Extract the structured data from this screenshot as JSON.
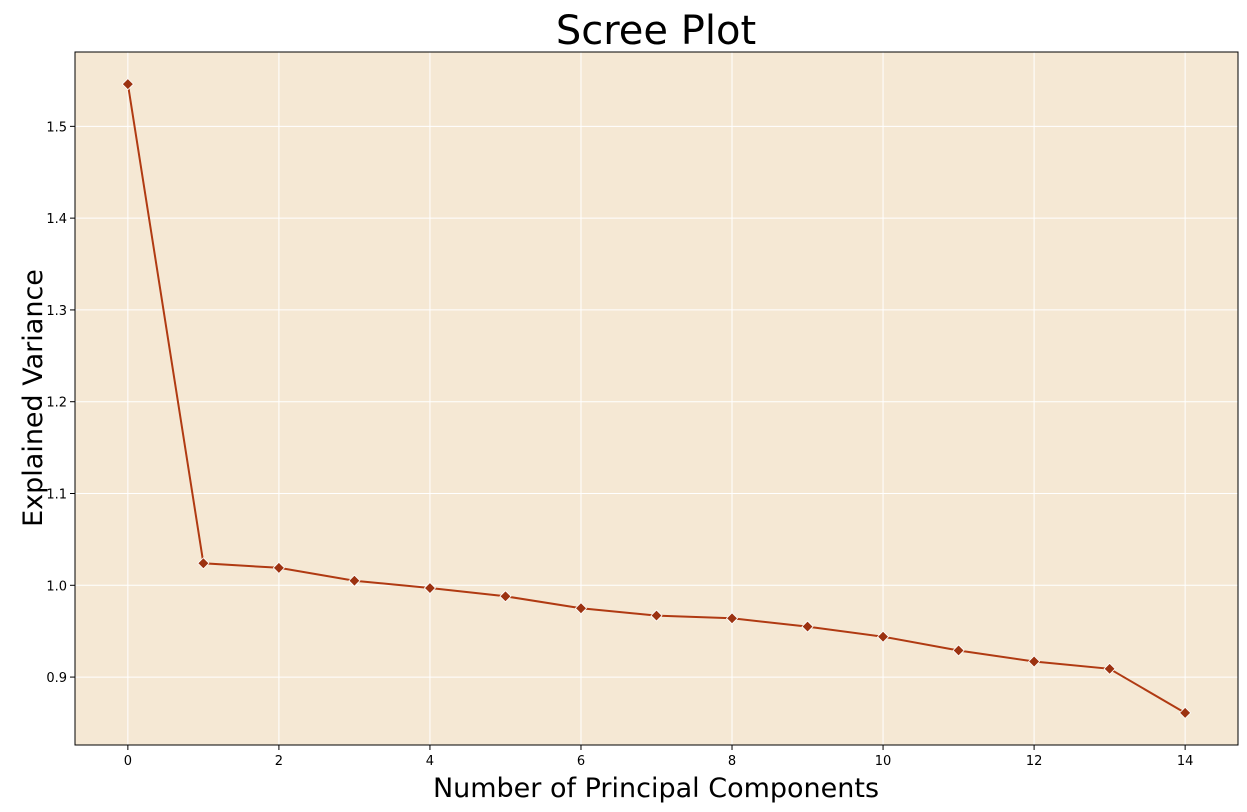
{
  "chart_data": {
    "type": "line",
    "title": "Scree Plot",
    "xlabel": "Number of Principal Components",
    "ylabel": "Explained Variance",
    "x": [
      0,
      1,
      2,
      3,
      4,
      5,
      6,
      7,
      8,
      9,
      10,
      11,
      12,
      13,
      14
    ],
    "series": [
      {
        "values": [
          1.546,
          1.024,
          1.019,
          1.005,
          0.997,
          0.988,
          0.975,
          0.967,
          0.964,
          0.955,
          0.944,
          0.929,
          0.917,
          0.909,
          0.861
        ]
      }
    ],
    "xlim": [
      -0.7,
      14.7
    ],
    "ylim": [
      0.826,
      1.581
    ],
    "xticks": [
      "0",
      "2",
      "4",
      "6",
      "8",
      "10",
      "12",
      "14"
    ],
    "yticks": [
      "0.9",
      "1.0",
      "1.1",
      "1.2",
      "1.3",
      "1.4",
      "1.5"
    ],
    "grid": true,
    "marker": "diamond",
    "colors": {
      "line": "#b03a12",
      "marker": "#9c3210",
      "background": "#f5e8d4",
      "grid": "#ffffff"
    }
  }
}
